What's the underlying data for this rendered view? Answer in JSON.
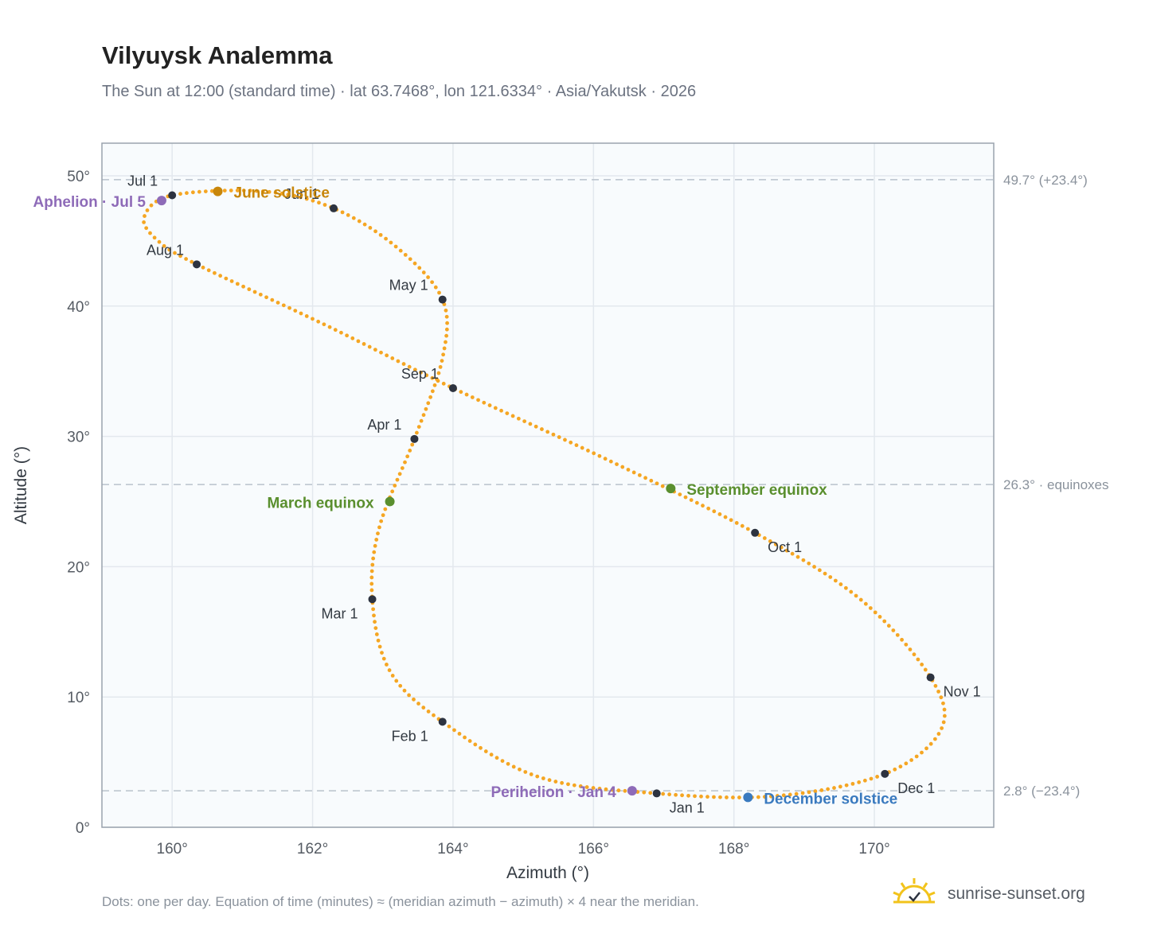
{
  "header": {
    "title": "Vilyuysk Analemma",
    "subtitle": "The Sun at 12:00 (standard time) · lat 63.7468°, lon 121.6334° · Asia/Yakutsk · 2026"
  },
  "footer": {
    "note": "Dots: one per day. Equation of time (minutes) ≈ (meridian azimuth − azimuth) × 4 near the meridian.",
    "brand": "sunrise-sunset.org"
  },
  "colors": {
    "curve": "#f5a623",
    "month_marker": "#2d3340",
    "solstice_june": "#c8860a",
    "solstice_december": "#3a7abf",
    "equinox": "#5a8f2e",
    "apsis": "#8e6bb8",
    "plot_bg": "#f8fbfd",
    "grid": "#e3e8ee",
    "reference_line": "#b9c2cc",
    "brand_sun": "#f2c31b"
  },
  "chart_data": {
    "type": "scatter",
    "xlabel": "Azimuth (°)",
    "ylabel": "Altitude (°)",
    "xlim": [
      159.0,
      171.7
    ],
    "ylim": [
      0,
      52.5
    ],
    "x_ticks": [
      160,
      162,
      164,
      166,
      168,
      170
    ],
    "x_tick_labels": [
      "160°",
      "162°",
      "164°",
      "166°",
      "168°",
      "170°"
    ],
    "y_ticks": [
      0,
      10,
      20,
      30,
      40,
      50
    ],
    "y_tick_labels": [
      "0°",
      "10°",
      "20°",
      "30°",
      "40°",
      "50°"
    ],
    "grid": true,
    "series_note": "one dot per day",
    "month_markers": [
      {
        "label": "Jan 1",
        "az": 166.9,
        "alt": 2.6
      },
      {
        "label": "Feb 1",
        "az": 163.85,
        "alt": 8.1
      },
      {
        "label": "Mar 1",
        "az": 162.85,
        "alt": 17.5
      },
      {
        "label": "Apr 1",
        "az": 163.45,
        "alt": 29.8
      },
      {
        "label": "May 1",
        "az": 163.85,
        "alt": 40.5
      },
      {
        "label": "Jun 1",
        "az": 162.3,
        "alt": 47.5
      },
      {
        "label": "Jul 1",
        "az": 160.0,
        "alt": 48.5
      },
      {
        "label": "Aug 1",
        "az": 160.35,
        "alt": 43.2
      },
      {
        "label": "Sep 1",
        "az": 164.0,
        "alt": 33.7
      },
      {
        "label": "Oct 1",
        "az": 168.3,
        "alt": 22.6
      },
      {
        "label": "Nov 1",
        "az": 170.8,
        "alt": 11.5
      },
      {
        "label": "Dec 1",
        "az": 170.15,
        "alt": 4.1
      }
    ],
    "events": [
      {
        "label": "June solstice",
        "az": 160.65,
        "alt": 48.8,
        "kind": "solstice_june"
      },
      {
        "label": "December solstice",
        "az": 168.2,
        "alt": 2.3,
        "kind": "solstice_december"
      },
      {
        "label": "March equinox",
        "az": 163.1,
        "alt": 25.0,
        "kind": "equinox"
      },
      {
        "label": "September equinox",
        "az": 167.1,
        "alt": 26.0,
        "kind": "equinox"
      },
      {
        "label": "Aphelion · Jul 5",
        "az": 159.85,
        "alt": 48.1,
        "kind": "apsis"
      },
      {
        "label": "Perihelion · Jan 4",
        "az": 166.55,
        "alt": 2.8,
        "kind": "apsis"
      }
    ],
    "reference_lines": [
      {
        "alt": 49.7,
        "label": "49.7° (+23.4°)"
      },
      {
        "alt": 26.3,
        "label": "26.3° · equinoxes"
      },
      {
        "alt": 2.8,
        "label": "2.8° (−23.4°)"
      }
    ],
    "curve_control_points": [
      {
        "az": 166.9,
        "alt": 2.6
      },
      {
        "az": 165.2,
        "alt": 3.9
      },
      {
        "az": 163.85,
        "alt": 8.1
      },
      {
        "az": 163.1,
        "alt": 12.0
      },
      {
        "az": 162.85,
        "alt": 17.5
      },
      {
        "az": 162.95,
        "alt": 23.0
      },
      {
        "az": 163.45,
        "alt": 29.8
      },
      {
        "az": 163.85,
        "alt": 36.0
      },
      {
        "az": 163.85,
        "alt": 40.5
      },
      {
        "az": 163.2,
        "alt": 44.5
      },
      {
        "az": 162.3,
        "alt": 47.5
      },
      {
        "az": 161.3,
        "alt": 48.8
      },
      {
        "az": 160.0,
        "alt": 48.5
      },
      {
        "az": 159.6,
        "alt": 46.8
      },
      {
        "az": 159.8,
        "alt": 45.0
      },
      {
        "az": 160.35,
        "alt": 43.2
      },
      {
        "az": 162.2,
        "alt": 38.5
      },
      {
        "az": 164.0,
        "alt": 33.7
      },
      {
        "az": 166.2,
        "alt": 28.2
      },
      {
        "az": 168.3,
        "alt": 22.6
      },
      {
        "az": 169.8,
        "alt": 17.5
      },
      {
        "az": 170.8,
        "alt": 11.5
      },
      {
        "az": 170.95,
        "alt": 7.5
      },
      {
        "az": 170.15,
        "alt": 4.1
      },
      {
        "az": 168.6,
        "alt": 2.4
      },
      {
        "az": 166.9,
        "alt": 2.6
      }
    ]
  }
}
